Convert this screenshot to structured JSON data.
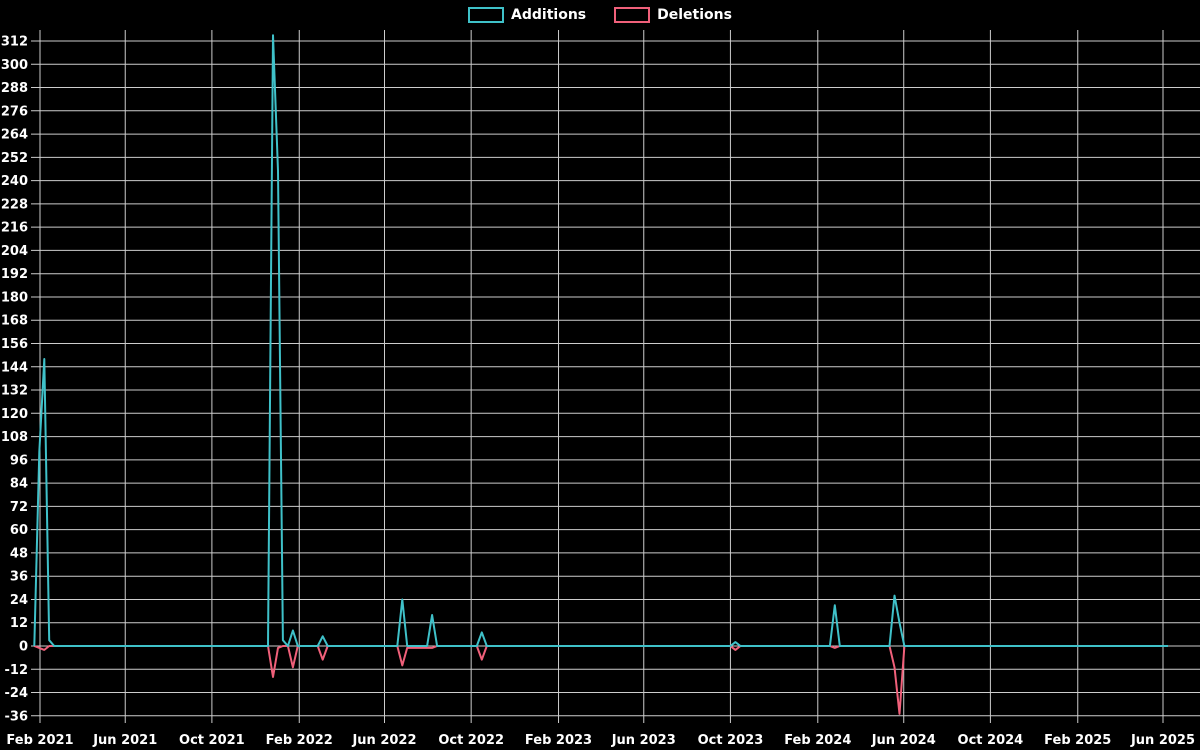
{
  "chart_data": {
    "type": "line",
    "title": "",
    "legend_position": "top",
    "background_color": "#000000",
    "grid": true,
    "grid_color": "#cdcdcd",
    "text_color": "#ffffff",
    "x_axis": {
      "ticks": [
        {
          "date": "2021-02-01",
          "label": "Feb 2021"
        },
        {
          "date": "2021-06-01",
          "label": "Jun 2021"
        },
        {
          "date": "2021-10-01",
          "label": "Oct 2021"
        },
        {
          "date": "2022-02-01",
          "label": "Feb 2022"
        },
        {
          "date": "2022-06-01",
          "label": "Jun 2022"
        },
        {
          "date": "2022-10-01",
          "label": "Oct 2022"
        },
        {
          "date": "2023-02-01",
          "label": "Feb 2023"
        },
        {
          "date": "2023-06-01",
          "label": "Jun 2023"
        },
        {
          "date": "2023-10-01",
          "label": "Oct 2023"
        },
        {
          "date": "2024-02-01",
          "label": "Feb 2024"
        },
        {
          "date": "2024-06-01",
          "label": "Jun 2024"
        },
        {
          "date": "2024-10-01",
          "label": "Oct 2024"
        },
        {
          "date": "2025-02-01",
          "label": "Feb 2025"
        },
        {
          "date": "2025-06-01",
          "label": "Jun 2025"
        }
      ]
    },
    "y_axis": {
      "min": -36,
      "max": 312,
      "tick_step": 12,
      "ticks": [
        312,
        300,
        288,
        276,
        264,
        252,
        240,
        228,
        216,
        204,
        192,
        180,
        168,
        156,
        144,
        132,
        120,
        108,
        96,
        84,
        72,
        60,
        48,
        36,
        24,
        12,
        0,
        -12,
        -24,
        -36
      ]
    },
    "series": [
      {
        "name": "Additions",
        "color": "#3fc1c9",
        "points": [
          [
            "2021-01-24",
            0
          ],
          [
            "2021-01-31",
            100
          ],
          [
            "2021-02-07",
            148
          ],
          [
            "2021-02-14",
            3
          ],
          [
            "2021-02-21",
            0
          ],
          [
            "2021-12-19",
            0
          ],
          [
            "2021-12-26",
            315
          ],
          [
            "2022-01-02",
            245
          ],
          [
            "2022-01-09",
            3
          ],
          [
            "2022-01-16",
            0
          ],
          [
            "2022-01-23",
            8
          ],
          [
            "2022-01-30",
            0
          ],
          [
            "2022-02-27",
            0
          ],
          [
            "2022-03-06",
            5
          ],
          [
            "2022-03-13",
            0
          ],
          [
            "2022-06-19",
            0
          ],
          [
            "2022-06-26",
            24
          ],
          [
            "2022-07-03",
            0
          ],
          [
            "2022-07-31",
            0
          ],
          [
            "2022-08-07",
            16
          ],
          [
            "2022-08-14",
            0
          ],
          [
            "2022-10-09",
            0
          ],
          [
            "2022-10-16",
            7
          ],
          [
            "2022-10-23",
            0
          ],
          [
            "2023-10-01",
            0
          ],
          [
            "2023-10-08",
            2
          ],
          [
            "2023-10-15",
            0
          ],
          [
            "2024-02-18",
            0
          ],
          [
            "2024-02-25",
            21
          ],
          [
            "2024-03-03",
            0
          ],
          [
            "2024-05-12",
            0
          ],
          [
            "2024-05-19",
            26
          ],
          [
            "2024-05-26",
            12
          ],
          [
            "2024-06-02",
            0
          ],
          [
            "2025-06-08",
            0
          ]
        ]
      },
      {
        "name": "Deletions",
        "color": "#f0607a",
        "points": [
          [
            "2021-01-24",
            0
          ],
          [
            "2021-01-31",
            -1
          ],
          [
            "2021-02-07",
            -2
          ],
          [
            "2021-02-14",
            0
          ],
          [
            "2021-12-19",
            0
          ],
          [
            "2021-12-26",
            -16
          ],
          [
            "2022-01-02",
            -1
          ],
          [
            "2022-01-09",
            0
          ],
          [
            "2022-01-16",
            0
          ],
          [
            "2022-01-23",
            -11
          ],
          [
            "2022-01-30",
            0
          ],
          [
            "2022-02-27",
            0
          ],
          [
            "2022-03-06",
            -7
          ],
          [
            "2022-03-13",
            0
          ],
          [
            "2022-06-19",
            0
          ],
          [
            "2022-06-26",
            -10
          ],
          [
            "2022-07-03",
            -1
          ],
          [
            "2022-08-07",
            -1
          ],
          [
            "2022-08-14",
            0
          ],
          [
            "2022-10-09",
            0
          ],
          [
            "2022-10-16",
            -7
          ],
          [
            "2022-10-23",
            0
          ],
          [
            "2023-10-01",
            0
          ],
          [
            "2023-10-08",
            -2
          ],
          [
            "2023-10-15",
            0
          ],
          [
            "2024-02-18",
            0
          ],
          [
            "2024-02-25",
            -1
          ],
          [
            "2024-03-03",
            0
          ],
          [
            "2024-05-12",
            0
          ],
          [
            "2024-05-19",
            -11
          ],
          [
            "2024-05-26",
            -35
          ],
          [
            "2024-06-02",
            0
          ],
          [
            "2025-06-08",
            0
          ]
        ]
      }
    ]
  }
}
